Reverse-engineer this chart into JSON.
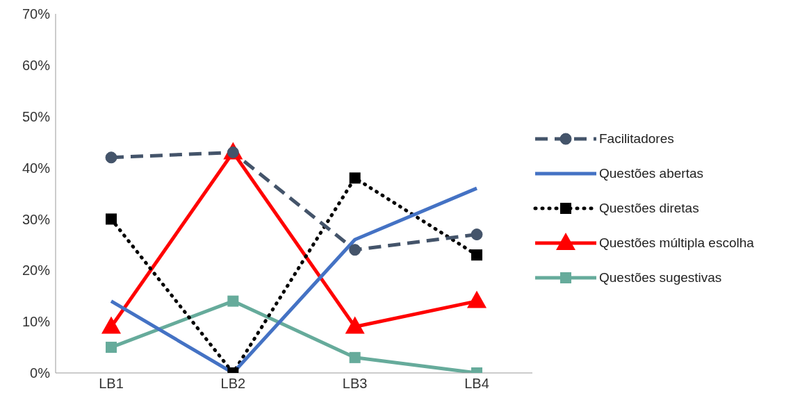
{
  "chart_data": {
    "type": "line",
    "categories": [
      "LB1",
      "LB2",
      "LB3",
      "LB4"
    ],
    "series": [
      {
        "name": "Facilitadores",
        "color": "#44546a",
        "values": [
          42,
          43,
          24,
          27
        ],
        "marker": "circle",
        "line_style": "dashed"
      },
      {
        "name": "Questões abertas",
        "color": "#4472c4",
        "values": [
          14,
          0,
          26,
          36
        ],
        "marker": "none",
        "line_style": "solid"
      },
      {
        "name": "Questões diretas",
        "color": "#000000",
        "values": [
          30,
          0,
          38,
          23
        ],
        "marker": "square",
        "line_style": "dotted"
      },
      {
        "name": "Questões múltipla escolha",
        "color": "#ff0000",
        "values": [
          9,
          43,
          9,
          14
        ],
        "marker": "triangle",
        "line_style": "solid"
      },
      {
        "name": "Questões sugestivas",
        "color": "#66ab9b",
        "values": [
          5,
          14,
          3,
          0
        ],
        "marker": "square",
        "line_style": "solid"
      }
    ],
    "ylim": [
      0,
      70
    ],
    "yticks": [
      {
        "value": 0,
        "label": "0%"
      },
      {
        "value": 10,
        "label": "10%"
      },
      {
        "value": 20,
        "label": "20%"
      },
      {
        "value": 30,
        "label": "30%"
      },
      {
        "value": 40,
        "label": "40%"
      },
      {
        "value": 50,
        "label": "50%"
      },
      {
        "value": 60,
        "label": "60%"
      },
      {
        "value": 70,
        "label": "70%"
      }
    ],
    "grid": false,
    "legend": "right"
  }
}
